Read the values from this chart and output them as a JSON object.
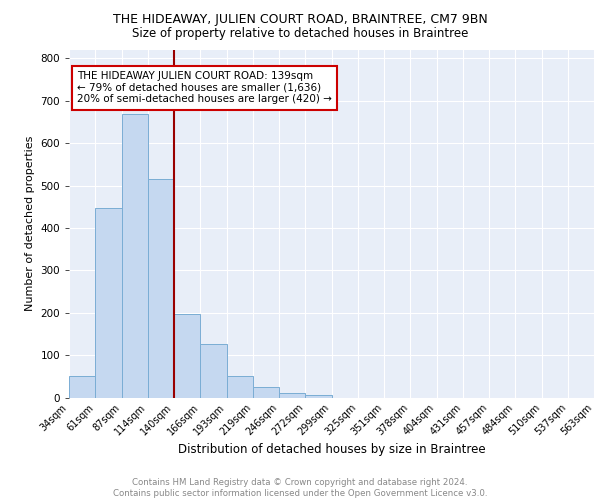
{
  "title": "THE HIDEAWAY, JULIEN COURT ROAD, BRAINTREE, CM7 9BN",
  "subtitle": "Size of property relative to detached houses in Braintree",
  "xlabel": "Distribution of detached houses by size in Braintree",
  "ylabel": "Number of detached properties",
  "bar_values": [
    50,
    447,
    668,
    516,
    198,
    126,
    50,
    25,
    10,
    7,
    0,
    0,
    0,
    0,
    0,
    0,
    0,
    0,
    0,
    0
  ],
  "bar_labels": [
    "34sqm",
    "61sqm",
    "87sqm",
    "114sqm",
    "140sqm",
    "166sqm",
    "193sqm",
    "219sqm",
    "246sqm",
    "272sqm",
    "299sqm",
    "325sqm",
    "351sqm",
    "378sqm",
    "404sqm",
    "431sqm",
    "457sqm",
    "484sqm",
    "510sqm",
    "537sqm",
    "563sqm"
  ],
  "bar_color": "#c5d8f0",
  "bar_edge_color": "#7aadd4",
  "vline_x": 4,
  "vline_color": "#990000",
  "annotation_text": "THE HIDEAWAY JULIEN COURT ROAD: 139sqm\n← 79% of detached houses are smaller (1,636)\n20% of semi-detached houses are larger (420) →",
  "annotation_box_color": "#cc0000",
  "ylim": [
    0,
    820
  ],
  "yticks": [
    0,
    100,
    200,
    300,
    400,
    500,
    600,
    700,
    800
  ],
  "background_color": "#e8eef8",
  "footer_text": "Contains HM Land Registry data © Crown copyright and database right 2024.\nContains public sector information licensed under the Open Government Licence v3.0.",
  "num_bars": 20,
  "title_fontsize": 9,
  "subtitle_fontsize": 8.5,
  "ylabel_fontsize": 8,
  "xlabel_fontsize": 8.5,
  "footer_fontsize": 6.2,
  "annotation_fontsize": 7.5,
  "tick_fontsize": 7
}
